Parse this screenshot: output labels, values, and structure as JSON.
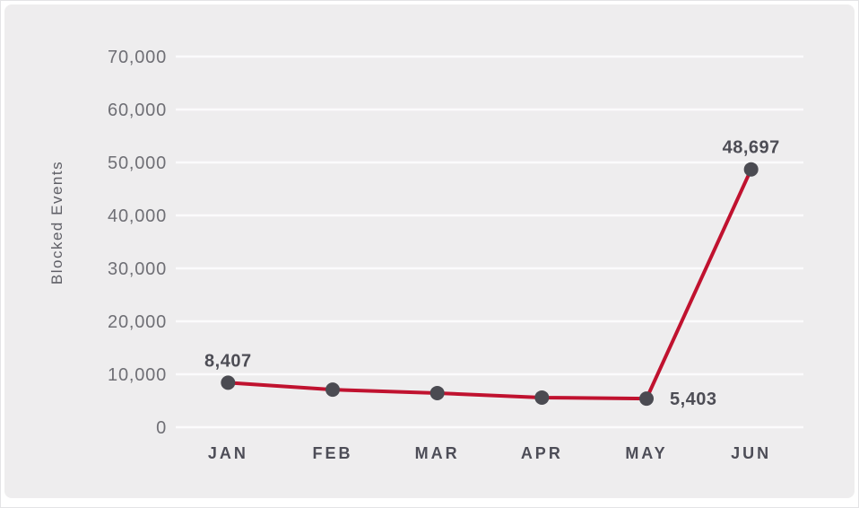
{
  "chart_data": {
    "type": "line",
    "title": "",
    "xlabel": "",
    "ylabel": "Blocked Events",
    "categories": [
      "JAN",
      "FEB",
      "MAR",
      "APR",
      "MAY",
      "JUN"
    ],
    "values": [
      8407,
      7100,
      6450,
      5600,
      5403,
      48697
    ],
    "series_name": "Blocked Events",
    "ylim": [
      0,
      70000
    ],
    "ytick_step": 10000,
    "ytick_labels": [
      "0",
      "10,000",
      "20,000",
      "30,000",
      "40,000",
      "50,000",
      "60,000",
      "70,000"
    ],
    "grid": "horizontal",
    "legend": "none",
    "annotations": [
      {
        "index": 0,
        "text": "8,407",
        "position": "above"
      },
      {
        "index": 4,
        "text": "5,403",
        "position": "right"
      },
      {
        "index": 5,
        "text": "48,697",
        "position": "above"
      }
    ],
    "colors": {
      "background": "#EEEDEE",
      "grid": "#FBFBFC",
      "line": "#C0122F",
      "point": "#4B4B52",
      "tick_label": "#6F6F75",
      "month_label": "#4D4D57",
      "data_label": "#4D4D55",
      "axis_label": "#5F5F66"
    }
  }
}
